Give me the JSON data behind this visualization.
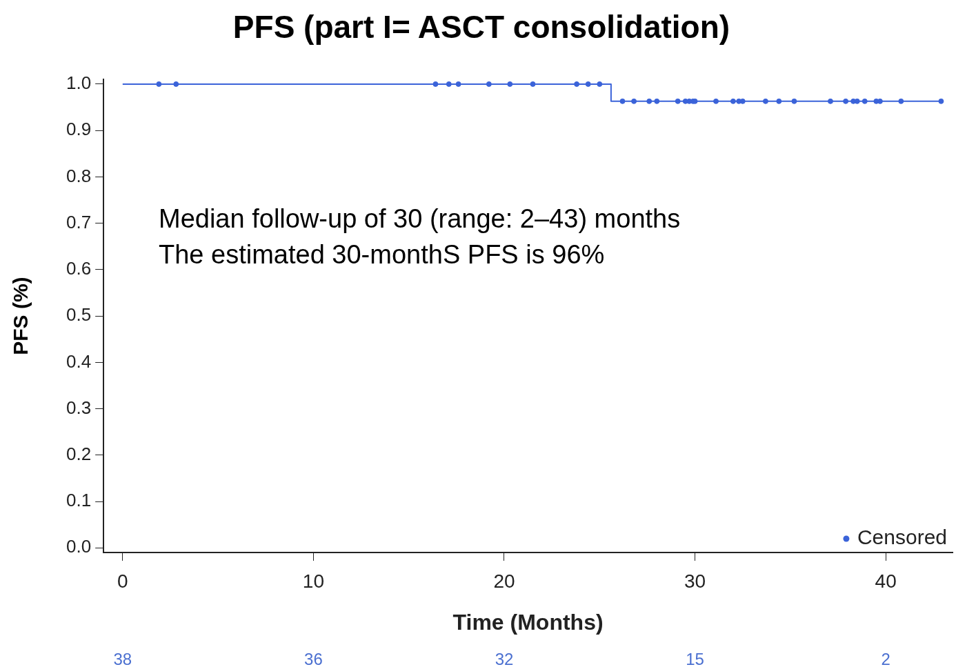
{
  "chart_data": {
    "type": "step",
    "title": "PFS (part I= ASCT consolidation)",
    "xlabel": "Time (Months)",
    "ylabel": "PFS (%)",
    "series": [
      {
        "color": "#3b63d9",
        "x": [
          0,
          25.6,
          42.9
        ],
        "values": [
          1,
          0.963,
          0.963
        ]
      },
      {
        "type": "scatter",
        "name": "Censored",
        "color": "#3b63d9",
        "marker": "circle",
        "x": [
          1.9,
          2.8,
          16.4,
          17.1,
          17.6,
          19.2,
          20.3,
          21.5,
          23.8,
          24.4,
          25.0,
          26.2,
          26.8,
          27.6,
          28.0,
          29.1,
          29.5,
          29.7,
          29.9,
          30.0,
          31.1,
          32.0,
          32.3,
          32.5,
          33.7,
          34.4,
          35.2,
          37.1,
          37.9,
          38.3,
          38.5,
          38.9,
          39.5,
          39.7,
          40.8,
          42.9
        ],
        "values": [
          1,
          1,
          1,
          1,
          1,
          1,
          1,
          1,
          1,
          1,
          1,
          0.963,
          0.963,
          0.963,
          0.963,
          0.963,
          0.963,
          0.963,
          0.963,
          0.963,
          0.963,
          0.963,
          0.963,
          0.963,
          0.963,
          0.963,
          0.963,
          0.963,
          0.963,
          0.963,
          0.963,
          0.963,
          0.963,
          0.963,
          0.963,
          0.963
        ]
      }
    ],
    "xlim": [
      -1,
      43.5
    ],
    "xticks": [
      0,
      10,
      20,
      30,
      40
    ],
    "ylim": [
      -0.01,
      1.01
    ],
    "yticks": [
      {
        "value": 0,
        "label": "0.0"
      },
      0.1,
      0.2,
      0.3,
      0.4,
      0.5,
      0.6,
      0.7,
      0.8,
      0.9,
      {
        "value": 1,
        "label": "1.0"
      }
    ],
    "annotations": [
      "Median follow-up of 30 (range: 2–43) months",
      "The estimated 30-monthS PFS is 96%",
      "38",
      "36",
      "32",
      "15",
      "2"
    ],
    "line_style": "solid",
    "grid": false,
    "legend": "bottom right"
  }
}
